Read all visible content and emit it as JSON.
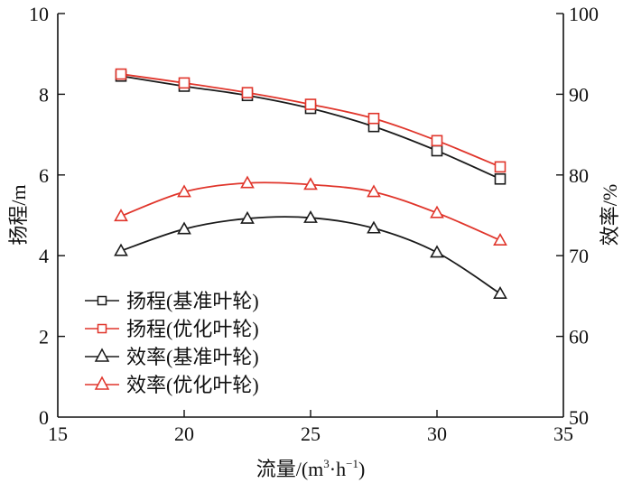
{
  "chart_data": {
    "type": "line",
    "title": "",
    "xlabel": "流量/(m³·h⁻¹)",
    "xlabel_parts": {
      "main": "流量/(m",
      "sup1": "3",
      "mid": "·h",
      "sup2": "−1",
      "end": ")"
    },
    "ylabel_left": "扬程/m",
    "ylabel_right": "效率/%",
    "xlim": [
      15,
      35
    ],
    "ylim_left": [
      0,
      10
    ],
    "ylim_right": [
      50,
      100
    ],
    "x_ticks": [
      "15",
      "20",
      "25",
      "30",
      "35"
    ],
    "y_ticks_left": [
      "0",
      "2",
      "4",
      "6",
      "8",
      "10"
    ],
    "y_ticks_right": [
      "50",
      "60",
      "70",
      "80",
      "90",
      "100"
    ],
    "grid": false,
    "legend_position": "bottom-left",
    "x": [
      17.5,
      20,
      22.5,
      25,
      27.5,
      30,
      32.5
    ],
    "series": [
      {
        "name": "扬程(基准叶轮)",
        "axis": "left",
        "marker": "square",
        "color": "#1a1a1a",
        "values": [
          8.45,
          8.2,
          7.97,
          7.65,
          7.2,
          6.6,
          5.9
        ]
      },
      {
        "name": "扬程(优化叶轮)",
        "axis": "left",
        "marker": "square",
        "color": "#e0352b",
        "values": [
          8.5,
          8.28,
          8.04,
          7.75,
          7.4,
          6.85,
          6.2
        ]
      },
      {
        "name": "效率(基准叶轮)",
        "axis": "right",
        "marker": "triangle",
        "color": "#1a1a1a",
        "values": [
          70.6,
          73.3,
          74.6,
          74.7,
          73.4,
          70.4,
          65.3
        ]
      },
      {
        "name": "效率(优化叶轮)",
        "axis": "right",
        "marker": "triangle",
        "color": "#e0352b",
        "values": [
          74.9,
          77.9,
          79.0,
          78.8,
          77.9,
          75.3,
          71.9
        ]
      }
    ]
  }
}
